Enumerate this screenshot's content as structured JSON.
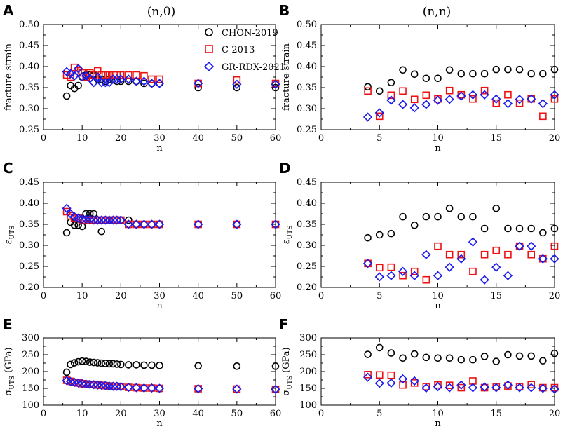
{
  "column_titles": [
    "(n,0)",
    "(n,n)"
  ],
  "panel_letters": [
    "A",
    "B",
    "C",
    "D",
    "E",
    "F"
  ],
  "colors": {
    "CHON-2019": "#000000",
    "C-2013": "#ee1111",
    "GR-RDX-2021": "#1a1aee"
  },
  "legend": [
    {
      "label": "CHON-2019",
      "marker": "circle"
    },
    {
      "label": "C-2013",
      "marker": "square"
    },
    {
      "label": "GR-RDX-2021",
      "marker": "diamond"
    }
  ],
  "chart_data": [
    {
      "panel": "A",
      "type": "scatter",
      "title": "(n,0)",
      "xlabel": "n",
      "ylabel": "fracture strain",
      "xlim": [
        0,
        60
      ],
      "ylim": [
        0.25,
        0.5
      ],
      "xticks": [
        "0",
        "10",
        "20",
        "30",
        "40",
        "50",
        "60"
      ],
      "yticks": [
        "0.25",
        "0.30",
        "0.35",
        "0.40",
        "0.45",
        "0.50"
      ],
      "legend": true,
      "series": [
        {
          "name": "CHON-2019",
          "marker": "circle",
          "x": [
            6,
            7,
            8,
            9,
            10,
            11,
            12,
            13,
            14,
            15,
            16,
            17,
            18,
            19,
            20,
            22,
            24,
            26,
            28,
            30,
            40,
            50,
            60
          ],
          "y": [
            0.33,
            0.355,
            0.348,
            0.355,
            0.375,
            0.38,
            0.38,
            0.38,
            0.37,
            0.37,
            0.365,
            0.37,
            0.37,
            0.365,
            0.365,
            0.365,
            0.365,
            0.36,
            0.36,
            0.36,
            0.35,
            0.35,
            0.35
          ]
        },
        {
          "name": "C-2013",
          "marker": "square",
          "x": [
            6,
            7,
            8,
            9,
            10,
            11,
            12,
            13,
            14,
            15,
            16,
            17,
            18,
            19,
            20,
            22,
            24,
            26,
            28,
            30,
            40,
            50,
            60
          ],
          "y": [
            0.38,
            0.375,
            0.398,
            0.39,
            0.385,
            0.375,
            0.385,
            0.38,
            0.39,
            0.38,
            0.38,
            0.38,
            0.38,
            0.38,
            0.38,
            0.38,
            0.38,
            0.378,
            0.37,
            0.37,
            0.36,
            0.368,
            0.36
          ]
        },
        {
          "name": "GR-RDX-2021",
          "marker": "diamond",
          "x": [
            6,
            7,
            8,
            9,
            10,
            11,
            12,
            13,
            14,
            15,
            16,
            17,
            18,
            19,
            20,
            22,
            24,
            26,
            28,
            30,
            40,
            50,
            60
          ],
          "y": [
            0.388,
            0.383,
            0.378,
            0.395,
            0.376,
            0.378,
            0.372,
            0.362,
            0.375,
            0.362,
            0.362,
            0.362,
            0.37,
            0.37,
            0.37,
            0.37,
            0.365,
            0.365,
            0.36,
            0.36,
            0.36,
            0.358,
            0.358
          ]
        }
      ]
    },
    {
      "panel": "B",
      "type": "scatter",
      "title": "(n,n)",
      "xlabel": "n",
      "ylabel": "fracture strain",
      "xlim": [
        0,
        20
      ],
      "ylim": [
        0.25,
        0.5
      ],
      "xticks": [
        "0",
        "5",
        "10",
        "15",
        "20"
      ],
      "yticks": [
        "0.25",
        "0.30",
        "0.35",
        "0.40",
        "0.45",
        "0.50"
      ],
      "legend": false,
      "series": [
        {
          "name": "CHON-2019",
          "marker": "circle",
          "x": [
            4,
            5,
            6,
            7,
            8,
            9,
            10,
            11,
            12,
            13,
            14,
            15,
            16,
            17,
            18,
            19,
            20
          ],
          "y": [
            0.352,
            0.342,
            0.362,
            0.392,
            0.382,
            0.372,
            0.372,
            0.392,
            0.383,
            0.383,
            0.383,
            0.393,
            0.393,
            0.393,
            0.383,
            0.383,
            0.393
          ]
        },
        {
          "name": "C-2013",
          "marker": "square",
          "x": [
            4,
            5,
            6,
            7,
            8,
            9,
            10,
            11,
            12,
            13,
            14,
            15,
            16,
            17,
            18,
            19,
            20
          ],
          "y": [
            0.342,
            0.282,
            0.332,
            0.342,
            0.322,
            0.332,
            0.323,
            0.343,
            0.333,
            0.323,
            0.343,
            0.313,
            0.333,
            0.313,
            0.323,
            0.282,
            0.323
          ]
        },
        {
          "name": "GR-RDX-2021",
          "marker": "diamond",
          "x": [
            4,
            5,
            6,
            7,
            8,
            9,
            10,
            11,
            12,
            13,
            14,
            15,
            16,
            17,
            18,
            19,
            20
          ],
          "y": [
            0.28,
            0.29,
            0.32,
            0.31,
            0.302,
            0.31,
            0.32,
            0.322,
            0.33,
            0.333,
            0.333,
            0.323,
            0.312,
            0.322,
            0.323,
            0.312,
            0.333
          ]
        }
      ]
    },
    {
      "panel": "C",
      "type": "scatter",
      "xlabel": "n",
      "ylabel": "ε",
      "ylabel_sub": "UTS",
      "xlim": [
        0,
        60
      ],
      "ylim": [
        0.2,
        0.45
      ],
      "xticks": [
        "0",
        "10",
        "20",
        "30",
        "40",
        "50",
        "60"
      ],
      "yticks": [
        "0.20",
        "0.25",
        "0.30",
        "0.35",
        "0.40",
        "0.45"
      ],
      "legend": false,
      "series": [
        {
          "name": "CHON-2019",
          "marker": "circle",
          "x": [
            6,
            7,
            8,
            9,
            10,
            11,
            12,
            13,
            14,
            15,
            16,
            17,
            18,
            19,
            20,
            22,
            24,
            26,
            28,
            30,
            40,
            50,
            60
          ],
          "y": [
            0.33,
            0.355,
            0.348,
            0.348,
            0.345,
            0.375,
            0.375,
            0.375,
            0.36,
            0.333,
            0.36,
            0.36,
            0.36,
            0.36,
            0.36,
            0.36,
            0.35,
            0.35,
            0.35,
            0.35,
            0.35,
            0.35,
            0.35
          ]
        },
        {
          "name": "C-2013",
          "marker": "square",
          "x": [
            6,
            7,
            8,
            9,
            10,
            11,
            12,
            13,
            14,
            15,
            16,
            17,
            18,
            19,
            20,
            22,
            24,
            26,
            28,
            30,
            40,
            50,
            60
          ],
          "y": [
            0.38,
            0.37,
            0.365,
            0.365,
            0.36,
            0.36,
            0.36,
            0.36,
            0.36,
            0.36,
            0.36,
            0.36,
            0.36,
            0.36,
            0.36,
            0.35,
            0.35,
            0.35,
            0.35,
            0.35,
            0.35,
            0.35,
            0.35
          ]
        },
        {
          "name": "GR-RDX-2021",
          "marker": "diamond",
          "x": [
            6,
            7,
            8,
            9,
            10,
            11,
            12,
            13,
            14,
            15,
            16,
            17,
            18,
            19,
            20,
            22,
            24,
            26,
            28,
            30,
            40,
            50,
            60
          ],
          "y": [
            0.388,
            0.375,
            0.368,
            0.365,
            0.362,
            0.362,
            0.362,
            0.36,
            0.36,
            0.36,
            0.36,
            0.36,
            0.36,
            0.36,
            0.36,
            0.35,
            0.35,
            0.35,
            0.35,
            0.35,
            0.35,
            0.35,
            0.35
          ]
        }
      ]
    },
    {
      "panel": "D",
      "type": "scatter",
      "xlabel": "n",
      "ylabel": "ε",
      "ylabel_sub": "UTS",
      "xlim": [
        0,
        20
      ],
      "ylim": [
        0.2,
        0.45
      ],
      "xticks": [
        "0",
        "5",
        "10",
        "15",
        "20"
      ],
      "yticks": [
        "0.20",
        "0.25",
        "0.30",
        "0.35",
        "0.40",
        "0.45"
      ],
      "legend": false,
      "series": [
        {
          "name": "CHON-2019",
          "marker": "circle",
          "x": [
            4,
            5,
            6,
            7,
            8,
            9,
            10,
            11,
            12,
            13,
            14,
            15,
            16,
            17,
            18,
            19,
            20
          ],
          "y": [
            0.318,
            0.325,
            0.328,
            0.368,
            0.348,
            0.368,
            0.368,
            0.388,
            0.368,
            0.368,
            0.34,
            0.388,
            0.34,
            0.34,
            0.34,
            0.33,
            0.34
          ]
        },
        {
          "name": "C-2013",
          "marker": "square",
          "x": [
            4,
            5,
            6,
            7,
            8,
            9,
            10,
            11,
            12,
            13,
            14,
            15,
            16,
            17,
            18,
            19,
            20
          ],
          "y": [
            0.257,
            0.247,
            0.248,
            0.228,
            0.238,
            0.218,
            0.298,
            0.278,
            0.278,
            0.238,
            0.278,
            0.288,
            0.278,
            0.298,
            0.278,
            0.268,
            0.298
          ]
        },
        {
          "name": "GR-RDX-2021",
          "marker": "diamond",
          "x": [
            4,
            5,
            6,
            7,
            8,
            9,
            10,
            11,
            12,
            13,
            14,
            15,
            16,
            17,
            18,
            19,
            20
          ],
          "y": [
            0.257,
            0.225,
            0.228,
            0.238,
            0.228,
            0.278,
            0.228,
            0.248,
            0.268,
            0.308,
            0.218,
            0.248,
            0.228,
            0.298,
            0.298,
            0.268,
            0.268
          ]
        }
      ]
    },
    {
      "panel": "E",
      "type": "scatter",
      "xlabel": "n",
      "ylabel": "σ",
      "ylabel_sub": "UTS",
      "ylabel_unit": " (GPa)",
      "xlim": [
        0,
        60
      ],
      "ylim": [
        100,
        300
      ],
      "xticks": [
        "0",
        "10",
        "20",
        "30",
        "40",
        "50",
        "60"
      ],
      "yticks": [
        "100",
        "150",
        "200",
        "250",
        "300"
      ],
      "legend": false,
      "series": [
        {
          "name": "CHON-2019",
          "marker": "circle",
          "x": [
            6,
            7,
            8,
            9,
            10,
            11,
            12,
            13,
            14,
            15,
            16,
            17,
            18,
            19,
            20,
            22,
            24,
            26,
            28,
            30,
            40,
            50,
            60
          ],
          "y": [
            198,
            221,
            226,
            229,
            231,
            230,
            228,
            227,
            226,
            225,
            224,
            223,
            223,
            222,
            221,
            220,
            220,
            219,
            219,
            218,
            217,
            216,
            216
          ]
        },
        {
          "name": "C-2013",
          "marker": "square",
          "x": [
            6,
            7,
            8,
            9,
            10,
            11,
            12,
            13,
            14,
            15,
            16,
            17,
            18,
            19,
            20,
            22,
            24,
            26,
            28,
            30,
            40,
            50,
            60
          ],
          "y": [
            174,
            171,
            168,
            166,
            164,
            163,
            162,
            161,
            160,
            159,
            158,
            157,
            156,
            156,
            155,
            153,
            152,
            151,
            151,
            150,
            149,
            148,
            147
          ]
        },
        {
          "name": "GR-RDX-2021",
          "marker": "diamond",
          "x": [
            6,
            7,
            8,
            9,
            10,
            11,
            12,
            13,
            14,
            15,
            16,
            17,
            18,
            19,
            20,
            22,
            24,
            26,
            28,
            30,
            40,
            50,
            60
          ],
          "y": [
            173,
            170,
            168,
            166,
            164,
            163,
            162,
            161,
            160,
            159,
            158,
            157,
            156,
            156,
            155,
            153,
            152,
            151,
            151,
            150,
            149,
            148,
            147
          ]
        }
      ]
    },
    {
      "panel": "F",
      "type": "scatter",
      "xlabel": "n",
      "ylabel": "σ",
      "ylabel_sub": "UTS",
      "ylabel_unit": " (GPa)",
      "xlim": [
        0,
        20
      ],
      "ylim": [
        100,
        300
      ],
      "xticks": [
        "0",
        "5",
        "10",
        "15",
        "20"
      ],
      "yticks": [
        "100",
        "150",
        "200",
        "250",
        "300"
      ],
      "legend": false,
      "series": [
        {
          "name": "CHON-2019",
          "marker": "circle",
          "x": [
            4,
            5,
            6,
            7,
            8,
            9,
            10,
            11,
            12,
            13,
            14,
            15,
            16,
            17,
            18,
            19,
            20
          ],
          "y": [
            251,
            271,
            255,
            240,
            252,
            242,
            240,
            240,
            235,
            235,
            245,
            230,
            250,
            246,
            246,
            232,
            254
          ]
        },
        {
          "name": "C-2013",
          "marker": "square",
          "x": [
            4,
            5,
            6,
            7,
            8,
            9,
            10,
            11,
            12,
            13,
            14,
            15,
            16,
            17,
            18,
            19,
            20
          ],
          "y": [
            191,
            190,
            189,
            160,
            166,
            155,
            160,
            159,
            152,
            172,
            152,
            155,
            157,
            155,
            161,
            152,
            152
          ]
        },
        {
          "name": "GR-RDX-2021",
          "marker": "diamond",
          "x": [
            4,
            5,
            6,
            7,
            8,
            9,
            10,
            11,
            12,
            13,
            14,
            15,
            16,
            17,
            18,
            19,
            20
          ],
          "y": [
            183,
            165,
            166,
            178,
            172,
            151,
            155,
            152,
            160,
            152,
            154,
            152,
            160,
            152,
            152,
            150,
            148
          ]
        }
      ]
    }
  ]
}
